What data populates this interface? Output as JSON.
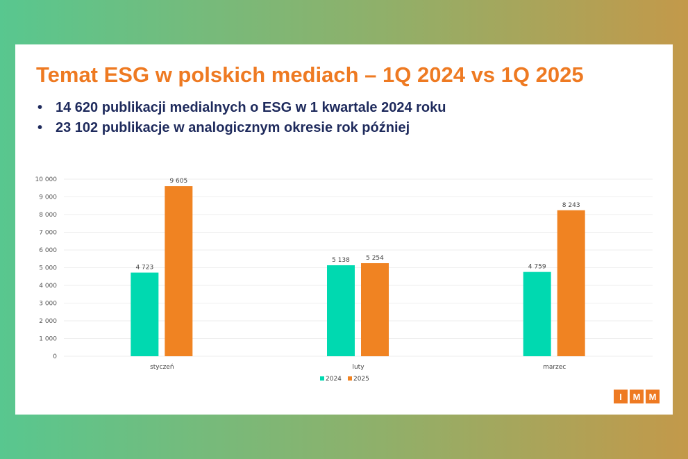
{
  "title": "Temat ESG w polskich mediach – 1Q 2024 vs 1Q 2025",
  "bullets": [
    "14 620 publikacji medialnych o ESG w 1 kwartale 2024 roku",
    "23 102 publikacje w analogicznym okresie rok później"
  ],
  "bullet_symbol": "•",
  "logo": [
    "I",
    "M",
    "M"
  ],
  "colors": {
    "s2024": "#00d9b0",
    "s2025": "#f08322",
    "title": "#ee7a22",
    "text": "#1e2a5c"
  },
  "chart_data": {
    "type": "bar",
    "categories": [
      "styczeń",
      "luty",
      "marzec"
    ],
    "series": [
      {
        "name": "2024",
        "values": [
          4723,
          5138,
          4759
        ],
        "labels": [
          "4 723",
          "5 138",
          "4 759"
        ]
      },
      {
        "name": "2025",
        "values": [
          9605,
          5254,
          8243
        ],
        "labels": [
          "9 605",
          "5 254",
          "8 243"
        ]
      }
    ],
    "ylim": [
      0,
      10000
    ],
    "yticks": [
      0,
      1000,
      2000,
      3000,
      4000,
      5000,
      6000,
      7000,
      8000,
      9000,
      10000
    ],
    "ytick_labels": [
      "0",
      "1 000",
      "2 000",
      "3 000",
      "4 000",
      "5 000",
      "6 000",
      "7 000",
      "8 000",
      "9 000",
      "10 000"
    ],
    "grid": true,
    "legend": "bottom"
  }
}
